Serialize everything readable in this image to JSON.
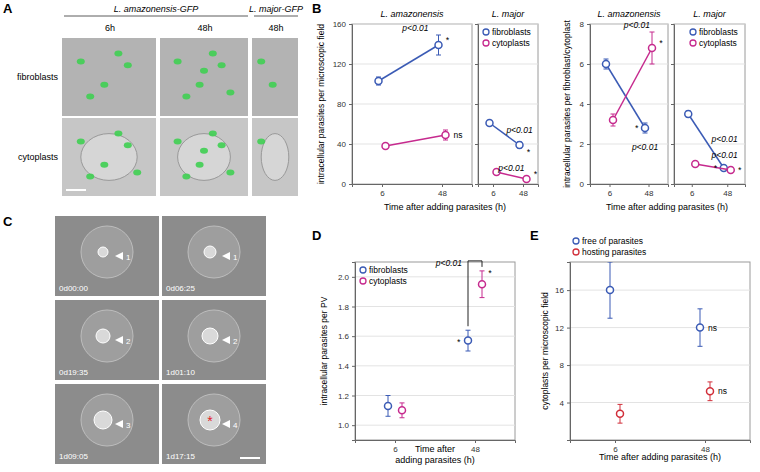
{
  "panel_labels": [
    "A",
    "B",
    "C",
    "D",
    "E"
  ],
  "images": {
    "A": {
      "column_headers": [
        "L. amazonensis-GFP",
        "L. major-GFP"
      ],
      "columns": [
        "6h",
        "48h",
        "48h"
      ],
      "rows": [
        "fibroblasts",
        "cytoplasts"
      ]
    },
    "C": {
      "timestamps": [
        "0d00:00",
        "0d06:25",
        "0d19:35",
        "1d01:10",
        "1d09:05",
        "1d17:15"
      ],
      "arrow_labels": [
        "1",
        "1",
        "2",
        "2",
        "3",
        "4"
      ],
      "asterisk": "*"
    }
  },
  "chart_data": [
    {
      "type": "line",
      "title": "L. amazonensis",
      "y_label": "intracellular parasites per microscopic field",
      "x_label": "Time after adding parasites (h)",
      "categories": [
        "6",
        "48"
      ],
      "series": [
        {
          "name": "fibroblasts",
          "color": "#3b5bb5",
          "marker": "open-circle",
          "values": [
            103,
            139
          ],
          "errors": [
            4,
            10
          ]
        },
        {
          "name": "cytoplasts",
          "color": "#c62a8e",
          "marker": "open-circle",
          "values": [
            38,
            49
          ],
          "errors": [
            2,
            5
          ]
        }
      ],
      "ylim": [
        0,
        160
      ],
      "yticks": [
        0,
        40,
        80,
        120,
        160
      ],
      "grid": true,
      "annotations": [
        "p<0.01",
        "*",
        "ns"
      ]
    },
    {
      "type": "line",
      "title": "L. major",
      "categories": [
        "6",
        "48"
      ],
      "series": [
        {
          "name": "fibroblasts",
          "color": "#3b5bb5",
          "marker": "open-circle",
          "values": [
            61,
            39
          ],
          "errors": [
            2,
            3
          ]
        },
        {
          "name": "cytoplasts",
          "color": "#c62a8e",
          "marker": "open-circle",
          "values": [
            12,
            5
          ],
          "errors": [
            1,
            1
          ]
        }
      ],
      "ylim": [
        0,
        160
      ],
      "yticks": [
        0,
        40,
        80,
        120,
        160
      ],
      "grid": true,
      "tick_labels": "x",
      "legend": "upper right",
      "annotations": [
        "p<0.01",
        "*",
        "p<0.01",
        "*"
      ]
    },
    {
      "type": "line",
      "title": "L. amazonensis",
      "y_label": "intracellular parasites per fibroblast/cytoplast",
      "x_label": "Time after adding parasites (h)",
      "categories": [
        "6",
        "48"
      ],
      "series": [
        {
          "name": "fibroblasts",
          "color": "#3b5bb5",
          "marker": "open-circle",
          "values": [
            6,
            2.8
          ],
          "errors": [
            0.25,
            0.25
          ]
        },
        {
          "name": "cytoplasts",
          "color": "#c62a8e",
          "marker": "open-circle",
          "values": [
            3.2,
            6.8
          ],
          "errors": [
            0.3,
            0.8
          ]
        }
      ],
      "ylim": [
        0,
        8
      ],
      "yticks": [
        0,
        2,
        4,
        6,
        8
      ],
      "grid": true,
      "annotations": [
        "p<0.01",
        "*",
        "p<0.01",
        "*"
      ]
    },
    {
      "type": "line",
      "title": "L. major",
      "categories": [
        "6",
        "48"
      ],
      "series": [
        {
          "name": "fibroblasts",
          "color": "#3b5bb5",
          "marker": "open-circle",
          "values": [
            3.5,
            0.8
          ],
          "errors": [
            0.15,
            0.08
          ]
        },
        {
          "name": "cytoplasts",
          "color": "#c62a8e",
          "marker": "open-circle",
          "values": [
            1,
            0.7
          ],
          "errors": [
            0.1,
            0.08
          ]
        }
      ],
      "ylim": [
        0,
        8
      ],
      "yticks": [
        0,
        2,
        4,
        6,
        8
      ],
      "grid": true,
      "tick_labels": "x",
      "legend": "upper right",
      "annotations": [
        "p<0.01",
        "p<0.01",
        "*",
        "*"
      ]
    },
    {
      "type": "scatter",
      "y_label": "intracellular parasites per PV",
      "x_label": [
        "Time after",
        "adding parasites (h)"
      ],
      "categories": [
        "6",
        "48"
      ],
      "series": [
        {
          "name": "fibroblasts",
          "color": "#3b5bb5",
          "marker": "open-circle",
          "values": [
            1.13,
            1.57
          ],
          "errors": [
            0.07,
            0.07
          ]
        },
        {
          "name": "cytoplasts",
          "color": "#c62a8e",
          "marker": "open-circle",
          "values": [
            1.1,
            1.95
          ],
          "errors": [
            0.05,
            0.09
          ]
        }
      ],
      "ylim": [
        0.9,
        2.1
      ],
      "yticks": [
        {
          "value": 1,
          "label": "1.0"
        },
        1.2,
        1.4,
        1.6,
        1.8,
        {
          "value": 2,
          "label": "2.0"
        }
      ],
      "grid": true,
      "legend": "upper left",
      "annotations": [
        "p<0.01",
        "*",
        "*"
      ]
    },
    {
      "type": "scatter",
      "y_label": "cytoplasts per microscopic field",
      "x_label": "Time after adding parasites (h)",
      "categories": [
        "6",
        "48"
      ],
      "series": [
        {
          "name": "free of parasites",
          "color": "#3b5bb5",
          "marker": "open-circle",
          "values": [
            16,
            12
          ],
          "errors": [
            3,
            2
          ]
        },
        {
          "name": "hosting parasites",
          "color": "#d12f3a",
          "marker": "open-circle",
          "values": [
            2.8,
            5.2
          ],
          "errors": [
            1,
            1
          ]
        }
      ],
      "ylim": [
        0,
        19
      ],
      "yticks": [
        4,
        8,
        12,
        16
      ],
      "grid": true,
      "legend": "top",
      "annotations": [
        "ns",
        "ns"
      ]
    }
  ]
}
